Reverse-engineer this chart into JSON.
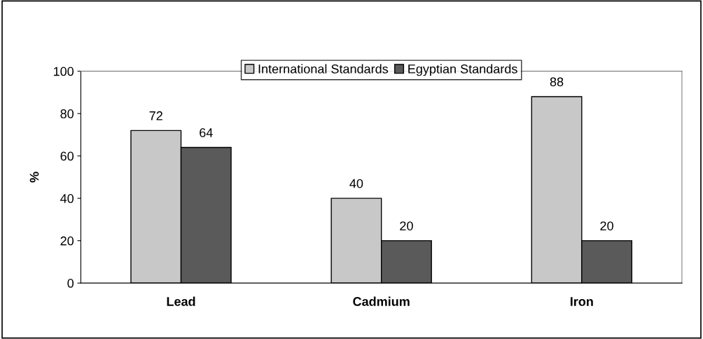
{
  "chart_data": {
    "type": "bar",
    "categories": [
      "Lead",
      "Cadmium",
      "Iron"
    ],
    "ylabel": "%",
    "series": [
      {
        "name": "International Standards",
        "color": "#c8c8c8",
        "values": [
          72,
          40,
          88
        ]
      },
      {
        "name": "Egyptian Standards",
        "color": "#5a5a5a",
        "values": [
          64,
          20,
          20
        ]
      }
    ],
    "ylim": [
      0,
      100
    ],
    "yticks": [
      0,
      20,
      40,
      60,
      80,
      100
    ],
    "data_labels": true,
    "grid": false,
    "legend": "top"
  }
}
